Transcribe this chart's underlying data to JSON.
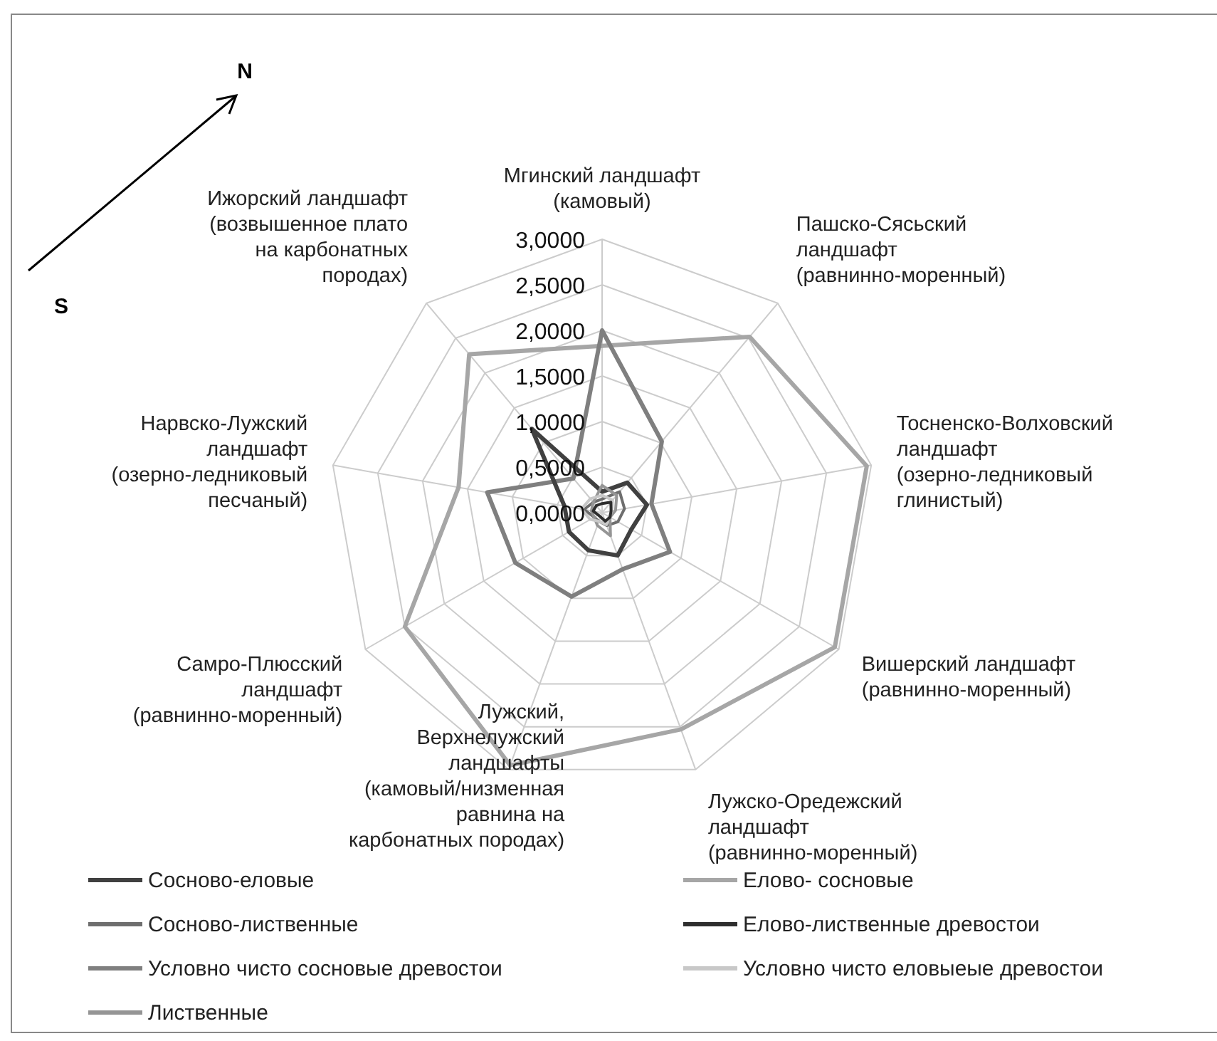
{
  "chart_data": {
    "type": "radar",
    "categories": [
      "Мгинский ландшафт (камовый)",
      "Пашско-Сясьский ландшафт (равнинно-моренный)",
      "Тосненско-Волховский ландшафт (озерно-ледниковый глинистый)",
      "Вишерский ландшафт (равнинно-моренный)",
      "Лужско-Оредежский ландшафт (равнинно-моренный)",
      "Лужский, Верхнелужский ландшафты (камовый/низменная равнина на карбонатных породах)",
      "Самро-Плюсский ландшафт (равнинно-моренный)",
      "Нарвско-Лужский ландшафт (озерно-ледниковый песчаный)",
      "Ижорский ландшафт (возвышенное плато на карбонатных породах)"
    ],
    "series": [
      {
        "name": "Сосново-еловые",
        "color": "#404040",
        "values": [
          0.23,
          0.43,
          0.5,
          0.37,
          0.5,
          0.44,
          0.42,
          0.42,
          1.2
        ]
      },
      {
        "name": "Елово- сосновые",
        "color": "#a6a6a6",
        "values": [
          1.83,
          2.52,
          2.95,
          2.95,
          2.53,
          2.95,
          2.5,
          1.6,
          2.27
        ]
      },
      {
        "name": "Сосново-лиственные",
        "color": "#6e6e6e",
        "values": [
          0.15,
          0.3,
          0.25,
          0.2,
          0.15,
          0.1,
          0.1,
          0.2,
          0.15
        ]
      },
      {
        "name": "Елово-лиственные древостои",
        "color": "#2e2e2e",
        "values": [
          0.1,
          0.15,
          0.1,
          0.1,
          0.1,
          0.05,
          0.05,
          0.1,
          0.1
        ]
      },
      {
        "name": "Условно чисто сосновые древостои",
        "color": "#7f7f7f",
        "values": [
          2.0,
          1.02,
          0.55,
          0.86,
          0.66,
          0.98,
          1.1,
          1.28,
          0.49
        ]
      },
      {
        "name": "Условно чисто еловыеые древостои",
        "color": "#c8c8c8",
        "values": [
          0.19,
          0.18,
          0.11,
          0.09,
          0.14,
          0.1,
          0.15,
          0.23,
          0.2
        ]
      },
      {
        "name": "Лиственные",
        "color": "#959595",
        "values": [
          0.3,
          0.25,
          0.15,
          0.1,
          0.27,
          0.15,
          0.1,
          0.12,
          0.15
        ]
      }
    ],
    "ylim": [
      0,
      3
    ],
    "yticks": [
      {
        "value": 0,
        "label": "0,0000"
      },
      {
        "value": 0.5,
        "label": "0,5000"
      },
      {
        "value": 1,
        "label": "1,0000"
      },
      {
        "value": 1.5,
        "label": "1,5000"
      },
      {
        "value": 2,
        "label": "2,0000"
      },
      {
        "value": 2.5,
        "label": "2,5000"
      },
      {
        "value": 3,
        "label": "3,0000"
      }
    ],
    "grid": true,
    "legend": "bottom",
    "annotations": [
      "N",
      "S"
    ]
  }
}
